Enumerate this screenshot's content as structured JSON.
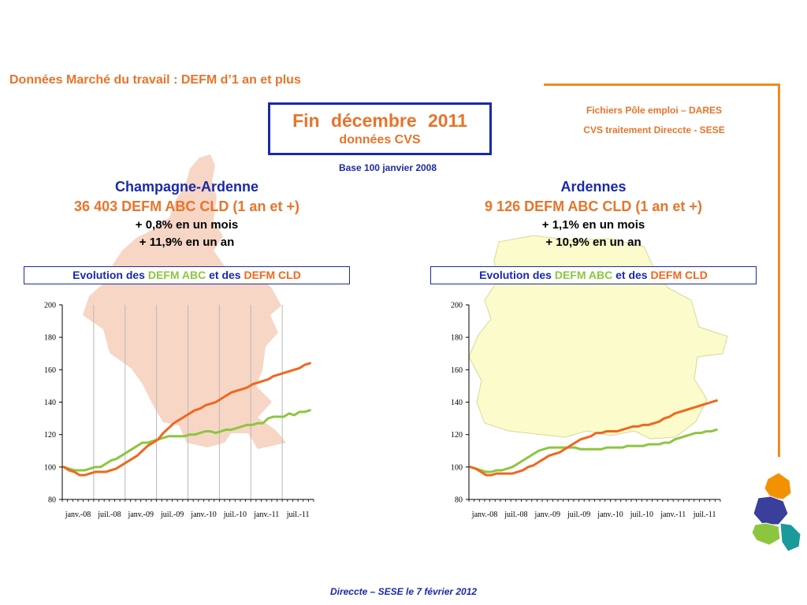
{
  "page_title": "Données Marché du travail : DEFM d’1 an et plus",
  "headline": {
    "title": "Fin décembre 2011",
    "subtitle": "données CVS"
  },
  "base_label": "Base 100 janvier 2008",
  "sources": [
    "Fichiers Pôle emploi – DARES",
    "CVS traitement Direccte - SESE"
  ],
  "footer": "Direccte – SESE le 7 février 2012",
  "colors": {
    "abc": "#8cc63f",
    "cld": "#f0671e",
    "title_blue": "#1a2aa8",
    "accent_orange": "#e8742a"
  },
  "regions": [
    {
      "name": "Champagne-Ardenne",
      "count_line": "36 403  DEFM ABC CLD (1 an et +)",
      "month_change": "+ 0,8% en un mois",
      "year_change": "+ 11,9% en un an",
      "evo_prefix": "Evolution des ",
      "evo_abc": "DEFM ABC",
      "evo_mid": " et des ",
      "evo_cld": "DEFM CLD"
    },
    {
      "name": "Ardennes",
      "count_line": "9 126  DEFM ABC CLD (1 an et +)",
      "month_change": "+ 1,1% en un mois",
      "year_change": "+ 10,9% en un an",
      "evo_prefix": "Evolution des ",
      "evo_abc": "DEFM ABC",
      "evo_mid": " et des ",
      "evo_cld": "DEFM CLD"
    }
  ],
  "chart_data": [
    {
      "type": "line",
      "region": "Champagne-Ardenne",
      "x_tick_labels": [
        "janv.-08",
        "juil.-08",
        "janv.-09",
        "juil.-09",
        "janv.-10",
        "juil.-10",
        "janv.-11",
        "juil.-11"
      ],
      "y_ticks": [
        80,
        100,
        120,
        140,
        160,
        180,
        200
      ],
      "ylim": [
        80,
        200
      ],
      "x_range": [
        "janv.-08",
        "déc.-11"
      ],
      "grid": "vertical",
      "series": [
        {
          "key": "abc",
          "values": [
            100,
            99,
            98,
            98,
            98,
            99,
            100,
            100,
            102,
            104,
            105,
            107,
            109,
            111,
            113,
            115,
            115,
            116,
            117,
            118,
            119,
            119,
            119,
            119,
            120,
            120,
            121,
            122,
            122,
            121,
            122,
            123,
            123,
            124,
            125,
            126,
            126,
            127,
            127,
            130,
            131,
            131,
            131,
            133,
            132,
            134,
            134,
            135
          ]
        },
        {
          "key": "cld",
          "values": [
            100,
            98,
            97,
            95,
            95,
            96,
            97,
            97,
            97,
            98,
            99,
            101,
            103,
            105,
            107,
            110,
            113,
            115,
            117,
            121,
            124,
            127,
            129,
            131,
            133,
            135,
            136,
            138,
            139,
            140,
            142,
            144,
            146,
            147,
            148,
            149,
            151,
            152,
            153,
            154,
            156,
            157,
            158,
            159,
            160,
            161,
            163,
            164
          ]
        }
      ]
    },
    {
      "type": "line",
      "region": "Ardennes",
      "x_tick_labels": [
        "janv.-08",
        "juil.-08",
        "janv.-09",
        "juil.-09",
        "janv.-10",
        "juil.-10",
        "janv.-11",
        "juil.-11"
      ],
      "y_ticks": [
        80,
        100,
        120,
        140,
        160,
        180,
        200
      ],
      "ylim": [
        80,
        200
      ],
      "x_range": [
        "janv.-08",
        "déc.-11"
      ],
      "grid": "none",
      "series": [
        {
          "key": "abc",
          "values": [
            100,
            99,
            98,
            97,
            97,
            98,
            98,
            99,
            100,
            102,
            104,
            106,
            108,
            110,
            111,
            112,
            112,
            112,
            112,
            112,
            112,
            111,
            111,
            111,
            111,
            111,
            112,
            112,
            112,
            112,
            113,
            113,
            113,
            113,
            114,
            114,
            114,
            115,
            115,
            117,
            118,
            119,
            120,
            121,
            121,
            122,
            122,
            123
          ]
        },
        {
          "key": "cld",
          "values": [
            100,
            99,
            97,
            95,
            95,
            96,
            96,
            96,
            96,
            97,
            98,
            100,
            101,
            103,
            105,
            107,
            108,
            109,
            111,
            113,
            115,
            117,
            118,
            119,
            121,
            121,
            122,
            122,
            122,
            123,
            124,
            125,
            125,
            126,
            126,
            127,
            128,
            130,
            131,
            133,
            134,
            135,
            136,
            137,
            138,
            139,
            140,
            141
          ]
        }
      ]
    }
  ]
}
